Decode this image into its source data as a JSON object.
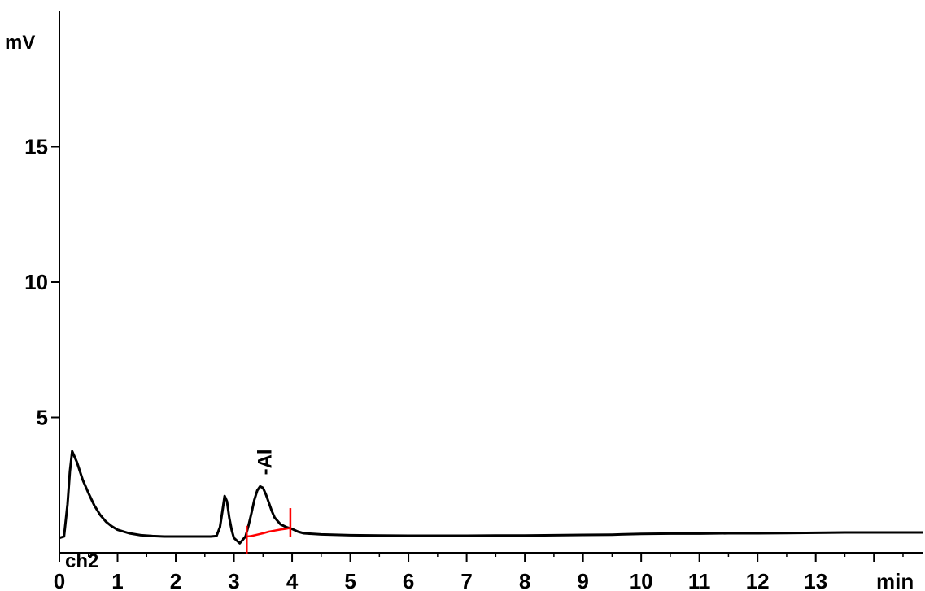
{
  "chart_data": {
    "type": "line",
    "ylabel": "mV",
    "xlabel": "min",
    "channel_label": "ch2",
    "xlim": [
      0,
      14.85
    ],
    "ylim": [
      0,
      20
    ],
    "x_ticks": [
      0,
      1,
      2,
      3,
      4,
      5,
      6,
      7,
      8,
      9,
      10,
      11,
      12,
      13
    ],
    "x_tick_labels": [
      "0",
      "1",
      "2",
      "3",
      "4",
      "5",
      "6",
      "7",
      "8",
      "9",
      "10",
      "11",
      "12",
      "13"
    ],
    "y_ticks": [
      5,
      10,
      15
    ],
    "y_tick_labels": [
      "5",
      "10",
      "15"
    ],
    "series": [
      {
        "color": "#000000",
        "x": [
          0.0,
          0.08,
          0.14,
          0.18,
          0.22,
          0.3,
          0.4,
          0.5,
          0.6,
          0.7,
          0.8,
          0.9,
          1.0,
          1.2,
          1.4,
          1.6,
          1.8,
          2.0,
          2.2,
          2.4,
          2.6,
          2.7,
          2.76,
          2.8,
          2.84,
          2.88,
          2.92,
          2.96,
          3.0,
          3.1,
          3.2,
          3.25,
          3.3,
          3.35,
          3.4,
          3.45,
          3.5,
          3.55,
          3.6,
          3.65,
          3.7,
          3.8,
          3.9,
          4.0,
          4.1,
          4.2,
          4.5,
          5.0,
          5.5,
          6.0,
          6.5,
          7.0,
          7.5,
          8.0,
          8.5,
          9.0,
          9.5,
          10.0,
          10.5,
          11.0,
          11.5,
          12.0,
          12.5,
          13.0,
          13.5,
          14.0,
          14.5,
          14.85
        ],
        "y": [
          0.55,
          0.6,
          1.8,
          3.0,
          3.75,
          3.35,
          2.7,
          2.2,
          1.75,
          1.4,
          1.15,
          0.98,
          0.85,
          0.72,
          0.65,
          0.62,
          0.6,
          0.6,
          0.6,
          0.6,
          0.6,
          0.62,
          0.95,
          1.5,
          2.1,
          1.9,
          1.3,
          0.85,
          0.55,
          0.35,
          0.6,
          1.0,
          1.45,
          1.95,
          2.3,
          2.45,
          2.4,
          2.15,
          1.85,
          1.55,
          1.3,
          1.05,
          0.95,
          0.88,
          0.78,
          0.72,
          0.68,
          0.65,
          0.64,
          0.63,
          0.63,
          0.63,
          0.64,
          0.64,
          0.65,
          0.66,
          0.67,
          0.7,
          0.71,
          0.71,
          0.72,
          0.72,
          0.73,
          0.74,
          0.75,
          0.75,
          0.75,
          0.75
        ]
      },
      {
        "color": "#ff0000",
        "x": [
          3.22,
          3.3,
          3.4,
          3.5,
          3.6,
          3.7,
          3.8,
          3.9,
          3.97
        ],
        "y": [
          0.6,
          0.62,
          0.67,
          0.72,
          0.78,
          0.82,
          0.86,
          0.89,
          0.92
        ]
      }
    ],
    "integration_marks": [
      {
        "x": 3.22,
        "y_from": -0.05,
        "y_to": 1.0,
        "color": "#ff0000"
      },
      {
        "x": 3.97,
        "y_from": 0.6,
        "y_to": 1.65,
        "color": "#ff0000"
      }
    ],
    "peak_annotations": [
      {
        "x": 3.5,
        "y": 2.45,
        "label": "Al"
      }
    ],
    "grid": false,
    "legend": "none"
  }
}
